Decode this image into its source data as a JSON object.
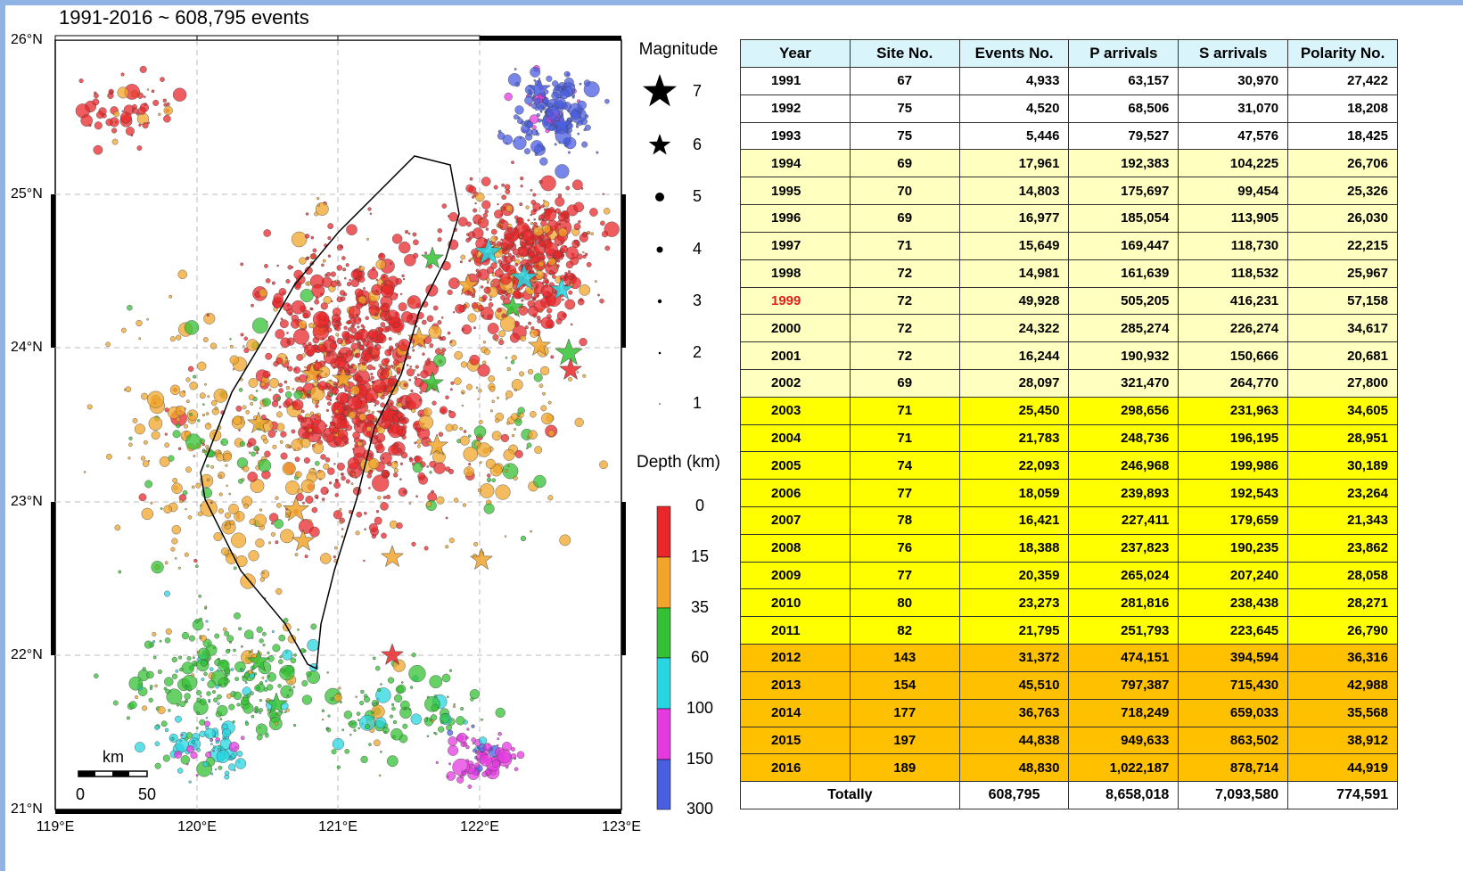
{
  "map": {
    "title": "1991-2016 ~ 608,795 events",
    "lat_labels": [
      "26°N",
      "25°N",
      "24°N",
      "23°N",
      "22°N",
      "21°N"
    ],
    "lon_labels": [
      "119°E",
      "120°E",
      "121°E",
      "122°E",
      "123°E"
    ],
    "scale_bar": {
      "unit": "km",
      "labels": [
        "0",
        "50"
      ]
    }
  },
  "legend": {
    "magnitude_title": "Magnitude",
    "magnitudes": [
      "7",
      "6",
      "5",
      "4",
      "3",
      "2",
      "1"
    ],
    "depth_title": "Depth (km)",
    "depth_labels": [
      "0",
      "15",
      "35",
      "60",
      "100",
      "150",
      "300"
    ]
  },
  "table": {
    "header": [
      "Year",
      "Site No.",
      "Events No.",
      "P arrivals",
      "S arrivals",
      "Polarity No."
    ],
    "rows": [
      [
        "1991",
        "67",
        "4,933",
        "63,157",
        "30,970",
        "27,422"
      ],
      [
        "1992",
        "75",
        "4,520",
        "68,506",
        "31,070",
        "18,208"
      ],
      [
        "1993",
        "75",
        "5,446",
        "79,527",
        "47,576",
        "18,425"
      ],
      [
        "1994",
        "69",
        "17,961",
        "192,383",
        "104,225",
        "26,706"
      ],
      [
        "1995",
        "70",
        "14,803",
        "175,697",
        "99,454",
        "25,326"
      ],
      [
        "1996",
        "69",
        "16,977",
        "185,054",
        "113,905",
        "26,030"
      ],
      [
        "1997",
        "71",
        "15,649",
        "169,447",
        "118,730",
        "22,215"
      ],
      [
        "1998",
        "72",
        "14,981",
        "161,639",
        "118,532",
        "25,967"
      ],
      [
        "1999",
        "72",
        "49,928",
        "505,205",
        "416,231",
        "57,158"
      ],
      [
        "2000",
        "72",
        "24,322",
        "285,274",
        "226,274",
        "34,617"
      ],
      [
        "2001",
        "72",
        "16,244",
        "190,932",
        "150,666",
        "20,681"
      ],
      [
        "2002",
        "69",
        "28,097",
        "321,470",
        "264,770",
        "27,800"
      ],
      [
        "2003",
        "71",
        "25,450",
        "298,656",
        "231,963",
        "34,605"
      ],
      [
        "2004",
        "71",
        "21,783",
        "248,736",
        "196,195",
        "28,951"
      ],
      [
        "2005",
        "74",
        "22,093",
        "246,968",
        "199,986",
        "30,189"
      ],
      [
        "2006",
        "77",
        "18,059",
        "239,893",
        "192,543",
        "23,264"
      ],
      [
        "2007",
        "78",
        "16,421",
        "227,411",
        "179,659",
        "21,343"
      ],
      [
        "2008",
        "76",
        "18,388",
        "237,823",
        "190,235",
        "23,862"
      ],
      [
        "2009",
        "77",
        "20,359",
        "265,024",
        "207,240",
        "28,058"
      ],
      [
        "2010",
        "80",
        "23,273",
        "281,816",
        "238,438",
        "28,271"
      ],
      [
        "2011",
        "82",
        "21,795",
        "251,793",
        "223,645",
        "26,790"
      ],
      [
        "2012",
        "143",
        "31,372",
        "474,151",
        "394,594",
        "36,316"
      ],
      [
        "2013",
        "154",
        "45,510",
        "797,387",
        "715,430",
        "42,988"
      ],
      [
        "2014",
        "177",
        "36,763",
        "718,249",
        "659,033",
        "35,568"
      ],
      [
        "2015",
        "197",
        "44,838",
        "949,633",
        "863,502",
        "38,912"
      ],
      [
        "2016",
        "189",
        "48,830",
        "1,022,187",
        "878,714",
        "44,919"
      ]
    ],
    "total": [
      "Totally",
      "608,795",
      "8,658,018",
      "7,093,580",
      "774,591"
    ]
  }
}
